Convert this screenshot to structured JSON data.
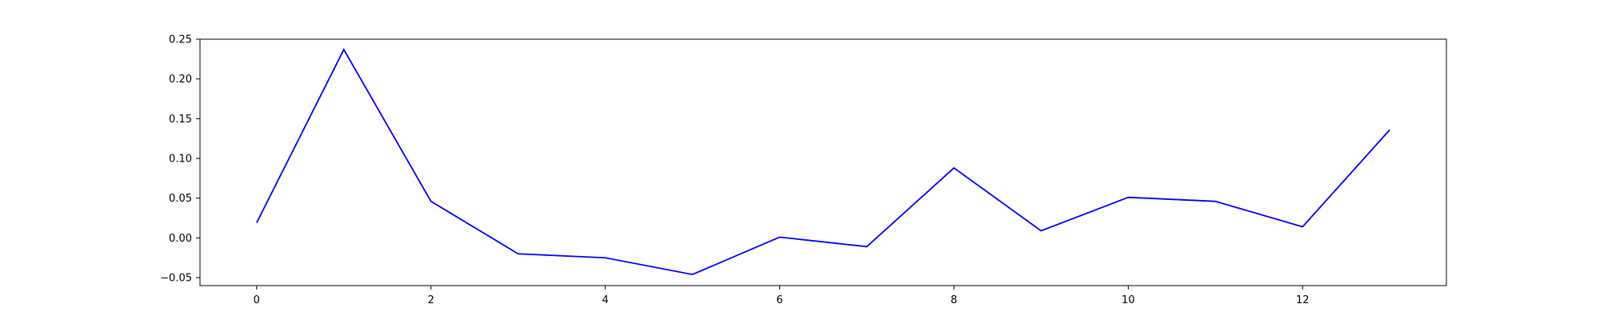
{
  "chart_data": {
    "type": "line",
    "title": "",
    "xlabel": "",
    "ylabel": "",
    "xlim": [
      -0.65,
      13.65
    ],
    "ylim": [
      -0.06,
      0.25
    ],
    "xticks": [
      0,
      2,
      4,
      6,
      8,
      10,
      12
    ],
    "yticks": [
      -0.05,
      0.0,
      0.05,
      0.1,
      0.15,
      0.2,
      0.25
    ],
    "xtick_labels": [
      "0",
      "2",
      "4",
      "6",
      "8",
      "10",
      "12"
    ],
    "ytick_labels": [
      "−0.05",
      "0.00",
      "0.05",
      "0.10",
      "0.15",
      "0.20",
      "0.25"
    ],
    "grid": false,
    "legend": "none",
    "series": [
      {
        "color": "#0000ff",
        "x": [
          0,
          1,
          2,
          3,
          4,
          5,
          6,
          7,
          8,
          9,
          10,
          11,
          12,
          13
        ],
        "y": [
          0.019,
          0.237,
          0.046,
          -0.02,
          -0.025,
          -0.046,
          0.001,
          -0.011,
          0.088,
          0.009,
          0.051,
          0.046,
          0.014,
          0.136
        ]
      }
    ]
  }
}
